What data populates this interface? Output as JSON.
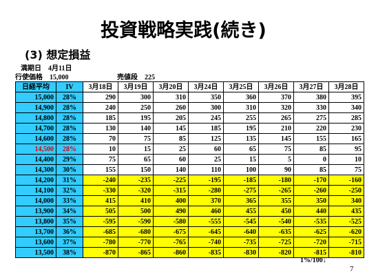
{
  "title": "投資戦略実践(続き)",
  "subtitle": "(3) 想定損益",
  "info": {
    "expiry_label": "満期日",
    "expiry": "4月11日",
    "strike_label": "行使価格",
    "strike": "15,000",
    "sell_label": "売値段",
    "sell": "225"
  },
  "table": {
    "header": [
      "日経平均",
      "IV",
      "3月18日",
      "3月19日",
      "3月20日",
      "3月24日",
      "3月25日",
      "3月26日",
      "3月27日",
      "3月28日"
    ],
    "rows": [
      [
        "15,000",
        "28%",
        290,
        300,
        310,
        350,
        360,
        370,
        380,
        395
      ],
      [
        "14,900",
        "28%",
        240,
        250,
        260,
        300,
        310,
        320,
        330,
        340
      ],
      [
        "14,800",
        "28%",
        185,
        195,
        205,
        245,
        255,
        265,
        275,
        285
      ],
      [
        "14,700",
        "28%",
        130,
        140,
        145,
        185,
        195,
        210,
        220,
        230
      ],
      [
        "14,600",
        "28%",
        70,
        75,
        85,
        125,
        135,
        145,
        155,
        165
      ],
      [
        "14,500",
        "28%",
        10,
        15,
        25,
        60,
        65,
        75,
        85,
        95
      ],
      [
        "14,400",
        "29%",
        75,
        65,
        60,
        25,
        15,
        5,
        0,
        10
      ],
      [
        "14,300",
        "30%",
        155,
        150,
        140,
        110,
        100,
        90,
        85,
        75
      ],
      [
        "14,200",
        "31%",
        -240,
        -235,
        -225,
        -195,
        -185,
        -180,
        -170,
        -160
      ],
      [
        "14,100",
        "32%",
        -330,
        -320,
        -315,
        -280,
        -275,
        -265,
        -260,
        -250
      ],
      [
        "14,000",
        "33%",
        415,
        410,
        400,
        370,
        365,
        355,
        350,
        340
      ],
      [
        "13,900",
        "34%",
        505,
        500,
        490,
        460,
        455,
        450,
        440,
        435
      ],
      [
        "13,800",
        "35%",
        -595,
        -590,
        -580,
        -555,
        -545,
        -540,
        -535,
        -525
      ],
      [
        "13,700",
        "36%",
        -685,
        -680,
        -675,
        -645,
        -640,
        -635,
        -625,
        -620
      ],
      [
        "13,600",
        "37%",
        -780,
        -770,
        -765,
        -740,
        -735,
        -725,
        -720,
        -715
      ],
      [
        "13,500",
        "38%",
        -870,
        -865,
        -860,
        -835,
        -830,
        -820,
        -815,
        -810
      ]
    ]
  },
  "footnote": "1%/100↓",
  "page_number": "7"
}
